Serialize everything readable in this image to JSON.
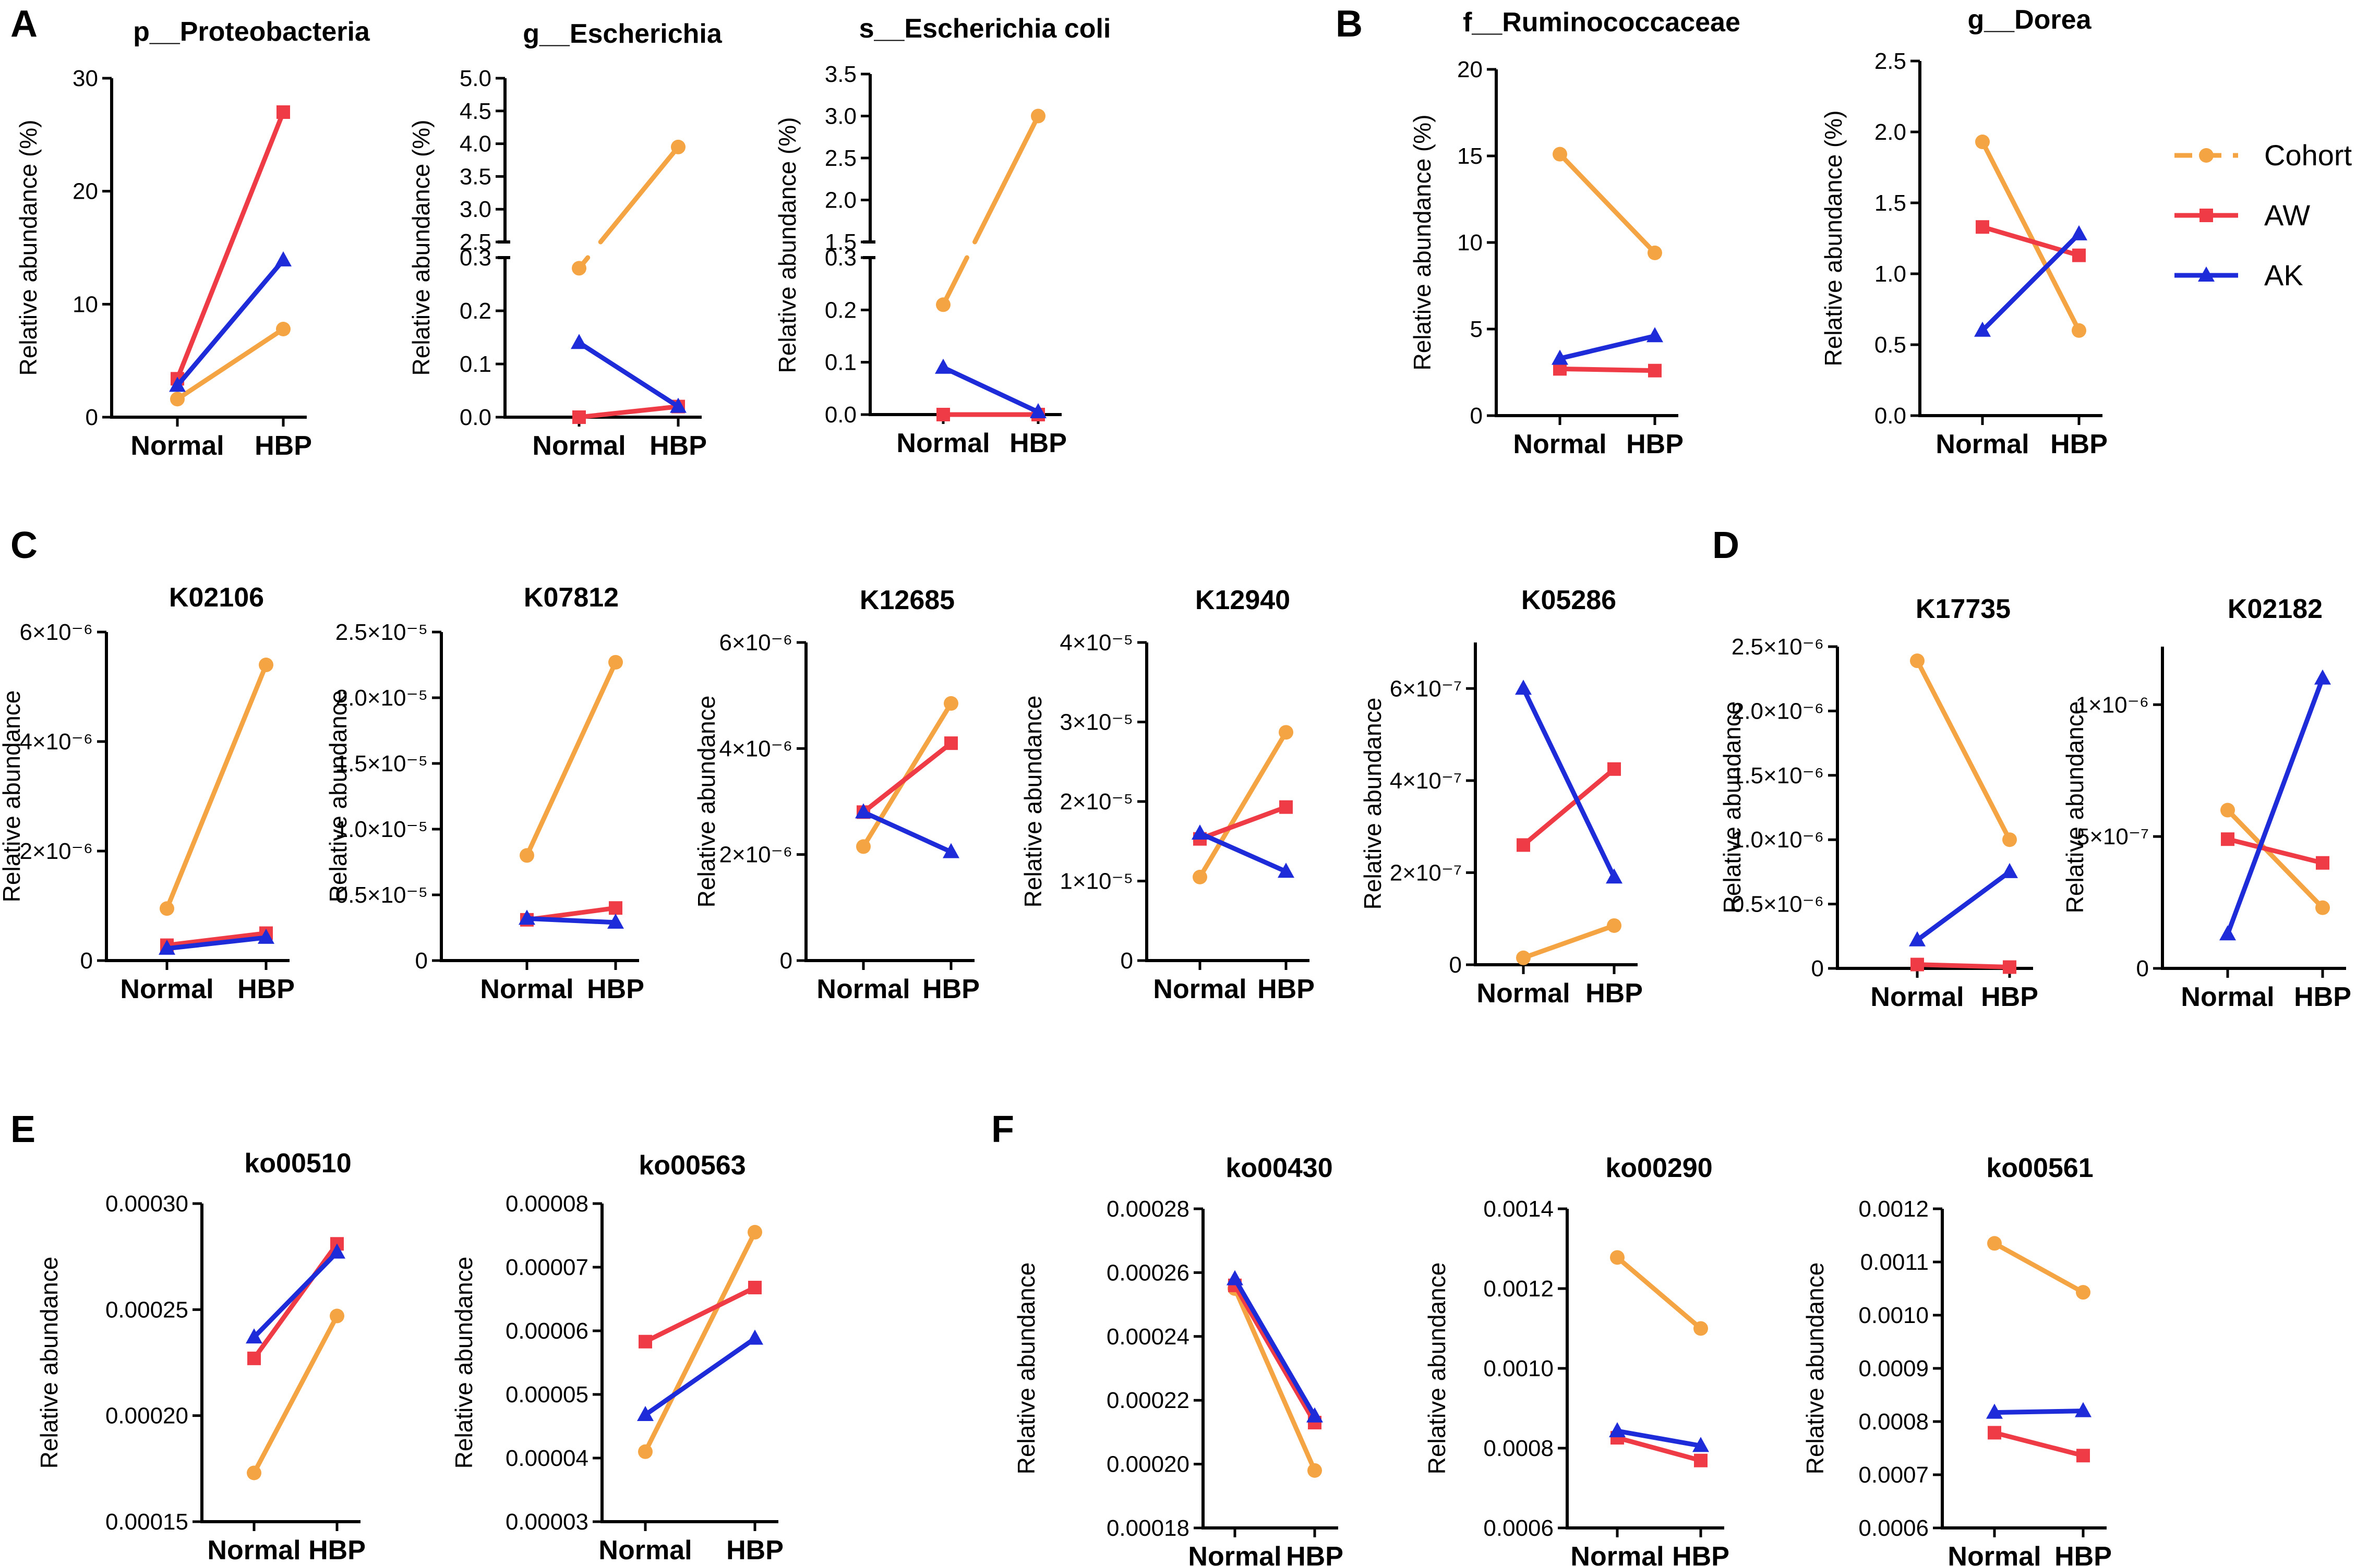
{
  "colors": {
    "Cohort": "#F4A442",
    "AW": "#EE3B46",
    "AK": "#1E2BD9"
  },
  "legend": [
    {
      "name": "Cohort",
      "marker": "circle"
    },
    {
      "name": "AW",
      "marker": "square"
    },
    {
      "name": "AK",
      "marker": "triangle"
    }
  ],
  "panel_letters": [
    "A",
    "B",
    "C",
    "D",
    "E",
    "F"
  ],
  "chart_data": [
    {
      "type": "line",
      "title": "p__Proteobacteria",
      "ylabel": "Relative abundance (%)",
      "categories": [
        "Normal",
        "HBP"
      ],
      "ylim": [
        0,
        30
      ],
      "yticks": [
        0,
        10,
        20,
        30
      ],
      "ytick_labels": [
        "0",
        "10",
        "20",
        "30"
      ],
      "series": [
        {
          "name": "Cohort",
          "values": [
            1.6,
            7.8
          ]
        },
        {
          "name": "AW",
          "values": [
            3.4,
            27.0
          ]
        },
        {
          "name": "AK",
          "values": [
            2.8,
            13.9
          ]
        }
      ]
    },
    {
      "type": "line",
      "title": "g__Escherichia",
      "ylabel": "Relative abundance (%)",
      "categories": [
        "Normal",
        "HBP"
      ],
      "break": {
        "lower": [
          0,
          0.3
        ],
        "upper": [
          2.5,
          5.0
        ]
      },
      "yticks": [
        0,
        0.1,
        0.2,
        0.3,
        2.5,
        3.0,
        3.5,
        4.0,
        4.5,
        5.0
      ],
      "ytick_labels": [
        "0.0",
        "0.1",
        "0.2",
        "0.3",
        "2.5",
        "3.0",
        "3.5",
        "4.0",
        "4.5",
        "5.0"
      ],
      "series": [
        {
          "name": "Cohort",
          "values": [
            0.28,
            3.95
          ]
        },
        {
          "name": "AW",
          "values": [
            0.0,
            0.02
          ]
        },
        {
          "name": "AK",
          "values": [
            0.14,
            0.02
          ]
        }
      ]
    },
    {
      "type": "line",
      "title": "s__Escherichia coli",
      "ylabel": "Relative abundance (%)",
      "categories": [
        "Normal",
        "HBP"
      ],
      "break": {
        "lower": [
          0,
          0.3
        ],
        "upper": [
          1.5,
          3.5
        ]
      },
      "yticks": [
        0,
        0.1,
        0.2,
        0.3,
        1.5,
        2.0,
        2.5,
        3.0,
        3.5
      ],
      "ytick_labels": [
        "0.0",
        "0.1",
        "0.2",
        "0.3",
        "1.5",
        "2.0",
        "2.5",
        "3.0",
        "3.5"
      ],
      "series": [
        {
          "name": "Cohort",
          "values": [
            0.21,
            3.0
          ]
        },
        {
          "name": "AW",
          "values": [
            0.0,
            0.0
          ]
        },
        {
          "name": "AK",
          "values": [
            0.09,
            0.005
          ]
        }
      ]
    },
    {
      "type": "line",
      "title": "f__Ruminococcaceae",
      "ylabel": "Relative abundance (%)",
      "categories": [
        "Normal",
        "HBP"
      ],
      "ylim": [
        0,
        20
      ],
      "yticks": [
        0,
        5,
        10,
        15,
        20
      ],
      "ytick_labels": [
        "0",
        "5",
        "10",
        "15",
        "20"
      ],
      "series": [
        {
          "name": "Cohort",
          "values": [
            15.1,
            9.4
          ]
        },
        {
          "name": "AW",
          "values": [
            2.7,
            2.6
          ]
        },
        {
          "name": "AK",
          "values": [
            3.3,
            4.6
          ]
        }
      ]
    },
    {
      "type": "line",
      "title": "g__Dorea",
      "ylabel": "Relative abundance (%)",
      "categories": [
        "Normal",
        "HBP"
      ],
      "ylim": [
        0,
        2.5
      ],
      "yticks": [
        0,
        0.5,
        1.0,
        1.5,
        2.0,
        2.5
      ],
      "ytick_labels": [
        "0.0",
        "0.5",
        "1.0",
        "1.5",
        "2.0",
        "2.5"
      ],
      "series": [
        {
          "name": "Cohort",
          "values": [
            1.93,
            0.6
          ]
        },
        {
          "name": "AW",
          "values": [
            1.33,
            1.13
          ]
        },
        {
          "name": "AK",
          "values": [
            0.6,
            1.28
          ]
        }
      ]
    },
    {
      "type": "line",
      "title": "K02106",
      "ylabel": "Relative abundance",
      "categories": [
        "Normal",
        "HBP"
      ],
      "ylim": [
        0,
        6e-06
      ],
      "yticks": [
        0,
        2e-06,
        4e-06,
        6e-06
      ],
      "ytick_labels": [
        "0",
        "2×10⁻⁶",
        "4×10⁻⁶",
        "6×10⁻⁶"
      ],
      "series": [
        {
          "name": "Cohort",
          "values": [
            9.5e-07,
            5.4e-06
          ]
        },
        {
          "name": "AW",
          "values": [
            2.8e-07,
            5e-07
          ]
        },
        {
          "name": "AK",
          "values": [
            2.2e-07,
            4.2e-07
          ]
        }
      ]
    },
    {
      "type": "line",
      "title": "K07812",
      "ylabel": "Relative abundance",
      "categories": [
        "Normal",
        "HBP"
      ],
      "ylim": [
        0,
        2.5e-05
      ],
      "yticks": [
        0,
        5e-06,
        1e-05,
        1.5e-05,
        2e-05,
        2.5e-05
      ],
      "ytick_labels": [
        "0",
        "0.5×10⁻⁵",
        "1.0×10⁻⁵",
        "1.5×10⁻⁵",
        "2.0×10⁻⁵",
        "2.5×10⁻⁵"
      ],
      "series": [
        {
          "name": "Cohort",
          "values": [
            8e-06,
            2.27e-05
          ]
        },
        {
          "name": "AW",
          "values": [
            3.1e-06,
            4e-06
          ]
        },
        {
          "name": "AK",
          "values": [
            3.2e-06,
            2.9e-06
          ]
        }
      ]
    },
    {
      "type": "line",
      "title": "K12685",
      "ylabel": "Relative abundance",
      "categories": [
        "Normal",
        "HBP"
      ],
      "ylim": [
        0,
        6e-06
      ],
      "yticks": [
        0,
        2e-06,
        4e-06,
        6e-06
      ],
      "ytick_labels": [
        "0",
        "2×10⁻⁶",
        "4×10⁻⁶",
        "6×10⁻⁶"
      ],
      "series": [
        {
          "name": "Cohort",
          "values": [
            2.15e-06,
            4.85e-06
          ]
        },
        {
          "name": "AW",
          "values": [
            2.8e-06,
            4.1e-06
          ]
        },
        {
          "name": "AK",
          "values": [
            2.8e-06,
            2.05e-06
          ]
        }
      ]
    },
    {
      "type": "line",
      "title": "K12940",
      "ylabel": "Relative abundance",
      "categories": [
        "Normal",
        "HBP"
      ],
      "ylim": [
        0,
        4e-05
      ],
      "yticks": [
        0,
        1e-05,
        2e-05,
        3e-05,
        4e-05
      ],
      "ytick_labels": [
        "0",
        "1×10⁻⁵",
        "2×10⁻⁵",
        "3×10⁻⁵",
        "4×10⁻⁵"
      ],
      "series": [
        {
          "name": "Cohort",
          "values": [
            1.05e-05,
            2.87e-05
          ]
        },
        {
          "name": "AW",
          "values": [
            1.53e-05,
            1.93e-05
          ]
        },
        {
          "name": "AK",
          "values": [
            1.6e-05,
            1.12e-05
          ]
        }
      ]
    },
    {
      "type": "line",
      "title": "K05286",
      "ylabel": "Relative abundance",
      "categories": [
        "Normal",
        "HBP"
      ],
      "ylim": [
        0,
        7e-07
      ],
      "yticks": [
        0,
        2e-07,
        4e-07,
        6e-07
      ],
      "ytick_labels": [
        "0",
        "2×10⁻⁷",
        "4×10⁻⁷",
        "6×10⁻⁷"
      ],
      "series": [
        {
          "name": "Cohort",
          "values": [
            1.5e-08,
            8.5e-08
          ]
        },
        {
          "name": "AW",
          "values": [
            2.6e-07,
            4.25e-07
          ]
        },
        {
          "name": "AK",
          "values": [
            6e-07,
            1.9e-07
          ]
        }
      ]
    },
    {
      "type": "line",
      "title": "K17735",
      "ylabel": "Relative abundance",
      "categories": [
        "Normal",
        "HBP"
      ],
      "ylim": [
        0,
        2.5e-06
      ],
      "yticks": [
        0,
        5e-07,
        1e-06,
        1.5e-06,
        2e-06,
        2.5e-06
      ],
      "ytick_labels": [
        "0",
        "0.5×10⁻⁶",
        "1.0×10⁻⁶",
        "1.5×10⁻⁶",
        "2.0×10⁻⁶",
        "2.5×10⁻⁶"
      ],
      "series": [
        {
          "name": "Cohort",
          "values": [
            2.39e-06,
            1e-06
          ]
        },
        {
          "name": "AW",
          "values": [
            3e-08,
            1e-08
          ]
        },
        {
          "name": "AK",
          "values": [
            2.2e-07,
            7.5e-07
          ]
        }
      ]
    },
    {
      "type": "line",
      "title": "K02182",
      "ylabel": "Relative abundance",
      "categories": [
        "Normal",
        "HBP"
      ],
      "ylim": [
        0,
        1.22e-06
      ],
      "yticks": [
        0,
        5e-07,
        1e-06
      ],
      "ytick_labels": [
        "0",
        "5×10⁻⁷",
        "1×10⁻⁶"
      ],
      "series": [
        {
          "name": "Cohort",
          "values": [
            6e-07,
            2.3e-07
          ]
        },
        {
          "name": "AW",
          "values": [
            4.9e-07,
            4e-07
          ]
        },
        {
          "name": "AK",
          "values": [
            1.3e-07,
            1.1e-06
          ]
        }
      ]
    },
    {
      "type": "line",
      "title": "ko00510",
      "ylabel": "Relative abundance",
      "categories": [
        "Normal",
        "HBP"
      ],
      "ylim": [
        0.00015,
        0.0003
      ],
      "yticks": [
        0.00015,
        0.0002,
        0.00025,
        0.0003
      ],
      "ytick_labels": [
        "0.00015",
        "0.00020",
        "0.00025",
        "0.00030"
      ],
      "series": [
        {
          "name": "Cohort",
          "values": [
            0.000173,
            0.000247
          ]
        },
        {
          "name": "AW",
          "values": [
            0.000227,
            0.000281
          ]
        },
        {
          "name": "AK",
          "values": [
            0.000237,
            0.000277
          ]
        }
      ]
    },
    {
      "type": "line",
      "title": "ko00563",
      "ylabel": "Relative abundance",
      "categories": [
        "Normal",
        "HBP"
      ],
      "ylim": [
        3e-05,
        8e-05
      ],
      "yticks": [
        3e-05,
        4e-05,
        5e-05,
        6e-05,
        7e-05,
        8e-05
      ],
      "ytick_labels": [
        "0.00003",
        "0.00004",
        "0.00005",
        "0.00006",
        "0.00007",
        "0.00008"
      ],
      "series": [
        {
          "name": "Cohort",
          "values": [
            4.1e-05,
            7.55e-05
          ]
        },
        {
          "name": "AW",
          "values": [
            5.83e-05,
            6.68e-05
          ]
        },
        {
          "name": "AK",
          "values": [
            4.68e-05,
            5.88e-05
          ]
        }
      ]
    },
    {
      "type": "line",
      "title": "ko00430",
      "ylabel": "Relative abundance",
      "categories": [
        "Normal",
        "HBP"
      ],
      "ylim": [
        0.00018,
        0.00028
      ],
      "yticks": [
        0.00018,
        0.0002,
        0.00022,
        0.00024,
        0.00026,
        0.00028
      ],
      "ytick_labels": [
        "0.00018",
        "0.00020",
        "0.00022",
        "0.00024",
        "0.00026",
        "0.00028"
      ],
      "series": [
        {
          "name": "Cohort",
          "values": [
            0.000255,
            0.000198
          ]
        },
        {
          "name": "AW",
          "values": [
            0.000256,
            0.000213
          ]
        },
        {
          "name": "AK",
          "values": [
            0.000258,
            0.000215
          ]
        }
      ]
    },
    {
      "type": "line",
      "title": "ko00290",
      "ylabel": "Relative abundance",
      "categories": [
        "Normal",
        "HBP"
      ],
      "ylim": [
        0.0006,
        0.0014
      ],
      "yticks": [
        0.0006,
        0.0008,
        0.001,
        0.0012,
        0.0014
      ],
      "ytick_labels": [
        "0.0006",
        "0.0008",
        "0.0010",
        "0.0012",
        "0.0014"
      ],
      "series": [
        {
          "name": "Cohort",
          "values": [
            0.001278,
            0.0011
          ]
        },
        {
          "name": "AW",
          "values": [
            0.000826,
            0.000769
          ]
        },
        {
          "name": "AK",
          "values": [
            0.000843,
            0.000806
          ]
        }
      ]
    },
    {
      "type": "line",
      "title": "ko00561",
      "ylabel": "Relative abundance",
      "categories": [
        "Normal",
        "HBP"
      ],
      "ylim": [
        0.0006,
        0.0012
      ],
      "yticks": [
        0.0006,
        0.0007,
        0.0008,
        0.0009,
        0.001,
        0.0011,
        0.0012
      ],
      "ytick_labels": [
        "0.0006",
        "0.0007",
        "0.0008",
        "0.0009",
        "0.0010",
        "0.0011",
        "0.0012"
      ],
      "series": [
        {
          "name": "Cohort",
          "values": [
            0.001135,
            0.001043
          ]
        },
        {
          "name": "AW",
          "values": [
            0.000779,
            0.000736
          ]
        },
        {
          "name": "AK",
          "values": [
            0.000817,
            0.00082
          ]
        }
      ]
    }
  ]
}
